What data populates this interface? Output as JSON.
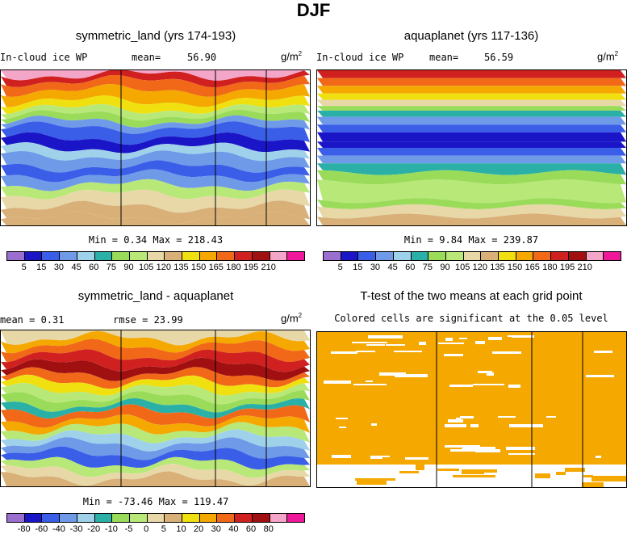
{
  "page_title": "DJF",
  "colors": {
    "abs": [
      "#9a6fd0",
      "#1a16c8",
      "#3a5ee8",
      "#6f9ae8",
      "#9fd2ea",
      "#2ab0a6",
      "#9adc5a",
      "#b8e878",
      "#e8d8a8",
      "#d8b078",
      "#f0e010",
      "#f4a800",
      "#f06818",
      "#d02020",
      "#a01010",
      "#f4a6c8",
      "#f0189a"
    ],
    "diff": [
      "#9a6fd0",
      "#1a16c8",
      "#3a5ee8",
      "#6f9ae8",
      "#9fd2ea",
      "#2ab0a6",
      "#9adc5a",
      "#b8e878",
      "#e8d8a8",
      "#d8b078",
      "#f0e010",
      "#f4a800",
      "#f06818",
      "#d02020",
      "#a01010",
      "#f4a6c8",
      "#f0189a"
    ],
    "ttest": "#f4a800"
  },
  "panels": {
    "p1": {
      "title": "symmetric_land (yrs 174-193)",
      "field": "In-cloud ice WP",
      "mean_label": "mean=",
      "mean_value": "56.90",
      "units": "g/m",
      "units_exp": "2",
      "minmax": "Min =   0.34 Max = 218.43"
    },
    "p2": {
      "title": "aquaplanet (yrs 117-136)",
      "field": "In-cloud ice WP",
      "mean_label": "mean=",
      "mean_value": "56.59",
      "units": "g/m",
      "units_exp": "2",
      "minmax": "Min =   9.84 Max = 239.87"
    },
    "p3": {
      "title": "symmetric_land - aquaplanet",
      "mean_text": "mean =    0.31",
      "rmse_text": "rmse =   23.99",
      "units": "g/m",
      "units_exp": "2",
      "minmax": "Min = -73.46 Max = 119.47"
    },
    "p4": {
      "title": "T-test of the two means at each grid point",
      "subtitle": "Colored cells are significant at the 0.05 level"
    }
  },
  "colorbar_abs_labels": [
    "5",
    "15",
    "30",
    "45",
    "60",
    "75",
    "90",
    "105",
    "120",
    "135",
    "150",
    "165",
    "180",
    "195",
    "210"
  ],
  "colorbar_diff_labels": [
    "-80",
    "-60",
    "-40",
    "-30",
    "-20",
    "-10",
    "-5",
    "0",
    "5",
    "10",
    "20",
    "30",
    "40",
    "60",
    "80"
  ],
  "chart_data": [
    {
      "type": "heatmap",
      "title": "symmetric_land (yrs 174-193)",
      "variable": "In-cloud ice WP",
      "units": "g/m2",
      "mean": 56.9,
      "min": 0.34,
      "max": 218.43,
      "levels": [
        5,
        15,
        30,
        45,
        60,
        75,
        90,
        105,
        120,
        135,
        150,
        165,
        180,
        195,
        210
      ]
    },
    {
      "type": "heatmap",
      "title": "aquaplanet (yrs 117-136)",
      "variable": "In-cloud ice WP",
      "units": "g/m2",
      "mean": 56.59,
      "min": 9.84,
      "max": 239.87,
      "levels": [
        5,
        15,
        30,
        45,
        60,
        75,
        90,
        105,
        120,
        135,
        150,
        165,
        180,
        195,
        210
      ]
    },
    {
      "type": "heatmap",
      "title": "symmetric_land - aquaplanet",
      "units": "g/m2",
      "mean": 0.31,
      "rmse": 23.99,
      "min": -73.46,
      "max": 119.47,
      "levels": [
        -80,
        -60,
        -40,
        -30,
        -20,
        -10,
        -5,
        0,
        5,
        10,
        20,
        30,
        40,
        60,
        80
      ]
    },
    {
      "type": "heatmap",
      "title": "T-test of the two means at each grid point",
      "subtitle": "Colored cells are significant at the 0.05 level"
    }
  ]
}
